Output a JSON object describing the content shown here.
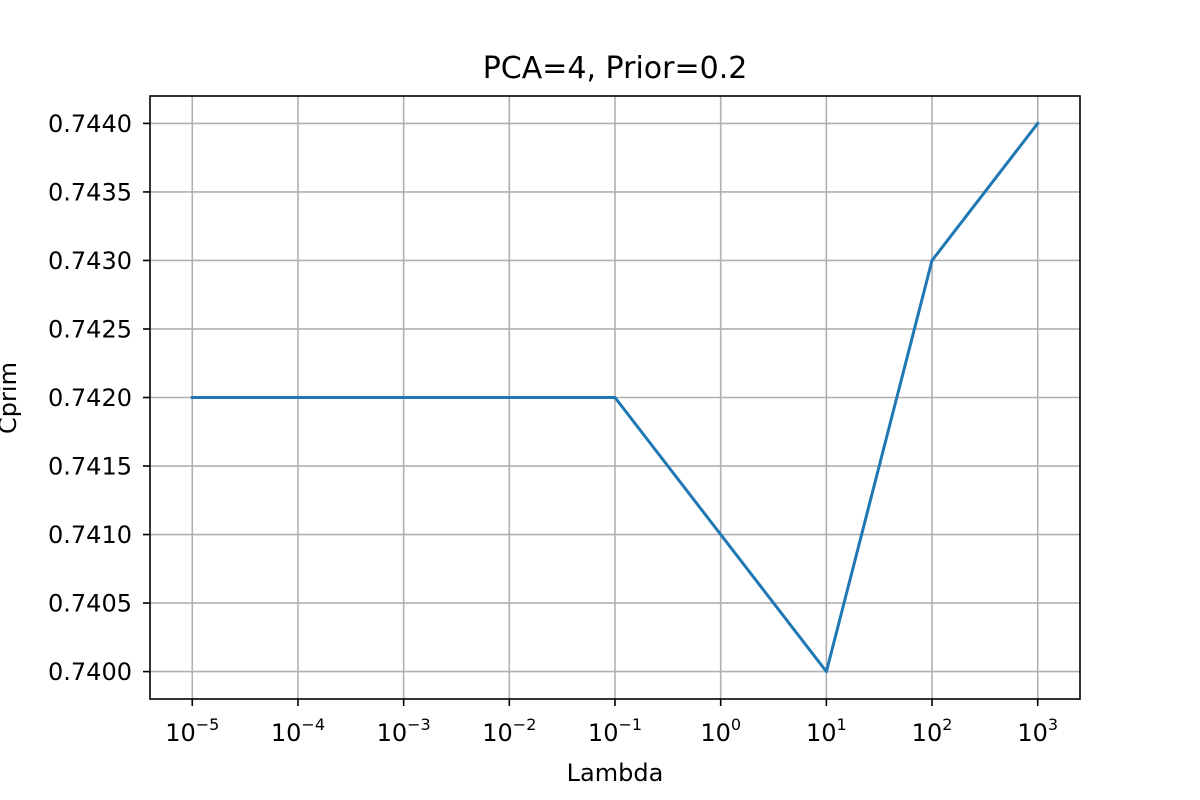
{
  "chart_data": {
    "type": "line",
    "title": "PCA=4, Prior=0.2",
    "xlabel": "Lambda",
    "ylabel": "Cprim",
    "xscale": "log",
    "x": [
      1e-05,
      0.0001,
      0.001,
      0.01,
      0.1,
      1,
      10,
      100,
      1000
    ],
    "xticks": [
      {
        "base": "10",
        "exp": "−5"
      },
      {
        "base": "10",
        "exp": "−4"
      },
      {
        "base": "10",
        "exp": "−3"
      },
      {
        "base": "10",
        "exp": "−2"
      },
      {
        "base": "10",
        "exp": "−1"
      },
      {
        "base": "10",
        "exp": "0"
      },
      {
        "base": "10",
        "exp": "1"
      },
      {
        "base": "10",
        "exp": "2"
      },
      {
        "base": "10",
        "exp": "3"
      }
    ],
    "yticks": [
      "0.7400",
      "0.7405",
      "0.7410",
      "0.7415",
      "0.7420",
      "0.7425",
      "0.7430",
      "0.7435",
      "0.7440"
    ],
    "ylim": [
      0.7398,
      0.7442
    ],
    "grid": true,
    "series": [
      {
        "color": "#1f77b4",
        "values": [
          0.742,
          0.742,
          0.742,
          0.742,
          0.742,
          0.741,
          0.74,
          0.743,
          0.744
        ]
      }
    ]
  }
}
